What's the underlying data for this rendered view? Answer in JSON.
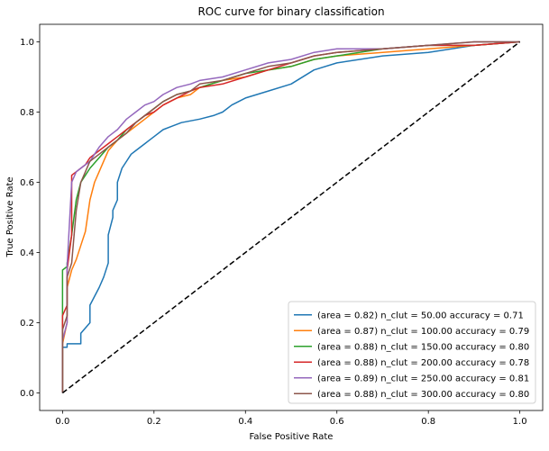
{
  "chart_data": {
    "type": "line",
    "title": "ROC curve for binary classification",
    "xlabel": "False Positive Rate",
    "ylabel": "True Positive Rate",
    "xlim": [
      -0.05,
      1.05
    ],
    "ylim": [
      -0.05,
      1.05
    ],
    "xticks": [
      0.0,
      0.2,
      0.4,
      0.6,
      0.8,
      1.0
    ],
    "xtick_labels": [
      "0.0",
      "0.2",
      "0.4",
      "0.6",
      "0.8",
      "1.0"
    ],
    "yticks": [
      0.0,
      0.2,
      0.4,
      0.6,
      0.8,
      1.0
    ],
    "ytick_labels": [
      "0.0",
      "0.2",
      "0.4",
      "0.6",
      "0.8",
      "1.0"
    ],
    "grid": false,
    "legend_position": "lower right",
    "diagonal": {
      "x": [
        0,
        1
      ],
      "y": [
        0,
        1
      ],
      "color": "#000000",
      "style": "dashed"
    },
    "series": [
      {
        "name": "(area = 0.82) n_clut = 50.00 accuracy = 0.71",
        "color": "#1f77b4",
        "x": [
          0.0,
          0.0,
          0.01,
          0.01,
          0.04,
          0.04,
          0.06,
          0.06,
          0.08,
          0.09,
          0.1,
          0.1,
          0.11,
          0.11,
          0.12,
          0.12,
          0.13,
          0.14,
          0.15,
          0.16,
          0.17,
          0.18,
          0.19,
          0.2,
          0.22,
          0.24,
          0.26,
          0.3,
          0.33,
          0.35,
          0.37,
          0.4,
          0.45,
          0.5,
          0.55,
          0.6,
          0.7,
          0.8,
          0.9,
          1.0
        ],
        "y": [
          0.0,
          0.13,
          0.13,
          0.14,
          0.14,
          0.17,
          0.2,
          0.25,
          0.3,
          0.33,
          0.37,
          0.45,
          0.5,
          0.52,
          0.55,
          0.6,
          0.64,
          0.66,
          0.68,
          0.69,
          0.7,
          0.71,
          0.72,
          0.73,
          0.75,
          0.76,
          0.77,
          0.78,
          0.79,
          0.8,
          0.82,
          0.84,
          0.86,
          0.88,
          0.92,
          0.94,
          0.96,
          0.97,
          0.99,
          1.0
        ]
      },
      {
        "name": "(area = 0.87) n_clut = 100.00 accuracy = 0.79",
        "color": "#ff7f0e",
        "x": [
          0.0,
          0.0,
          0.01,
          0.01,
          0.02,
          0.03,
          0.04,
          0.05,
          0.06,
          0.07,
          0.08,
          0.09,
          0.1,
          0.12,
          0.14,
          0.16,
          0.18,
          0.2,
          0.22,
          0.25,
          0.28,
          0.3,
          0.35,
          0.4,
          0.45,
          0.5,
          0.55,
          0.6,
          0.7,
          0.8,
          0.9,
          1.0
        ],
        "y": [
          0.0,
          0.14,
          0.2,
          0.3,
          0.35,
          0.38,
          0.42,
          0.46,
          0.55,
          0.6,
          0.63,
          0.66,
          0.69,
          0.72,
          0.74,
          0.76,
          0.78,
          0.8,
          0.82,
          0.84,
          0.85,
          0.87,
          0.89,
          0.9,
          0.92,
          0.93,
          0.95,
          0.96,
          0.97,
          0.98,
          0.99,
          1.0
        ]
      },
      {
        "name": "(area = 0.88) n_clut = 150.00 accuracy = 0.80",
        "color": "#2ca02c",
        "x": [
          0.0,
          0.0,
          0.01,
          0.01,
          0.02,
          0.03,
          0.04,
          0.05,
          0.06,
          0.08,
          0.1,
          0.12,
          0.14,
          0.16,
          0.18,
          0.2,
          0.22,
          0.25,
          0.28,
          0.3,
          0.35,
          0.4,
          0.45,
          0.5,
          0.55,
          0.6,
          0.7,
          0.8,
          0.9,
          1.0
        ],
        "y": [
          0.0,
          0.35,
          0.36,
          0.37,
          0.45,
          0.55,
          0.6,
          0.62,
          0.64,
          0.67,
          0.7,
          0.72,
          0.75,
          0.77,
          0.79,
          0.81,
          0.83,
          0.85,
          0.86,
          0.87,
          0.89,
          0.91,
          0.92,
          0.93,
          0.95,
          0.96,
          0.98,
          0.99,
          0.99,
          1.0
        ]
      },
      {
        "name": "(area = 0.88) n_clut = 200.00 accuracy = 0.78",
        "color": "#d62728",
        "x": [
          0.0,
          0.0,
          0.01,
          0.01,
          0.02,
          0.02,
          0.03,
          0.04,
          0.05,
          0.06,
          0.08,
          0.1,
          0.12,
          0.14,
          0.16,
          0.18,
          0.2,
          0.22,
          0.25,
          0.28,
          0.3,
          0.35,
          0.4,
          0.45,
          0.5,
          0.55,
          0.6,
          0.7,
          0.8,
          0.9,
          1.0
        ],
        "y": [
          0.0,
          0.22,
          0.25,
          0.35,
          0.45,
          0.62,
          0.63,
          0.64,
          0.65,
          0.67,
          0.69,
          0.71,
          0.73,
          0.75,
          0.77,
          0.79,
          0.8,
          0.82,
          0.84,
          0.86,
          0.87,
          0.88,
          0.9,
          0.92,
          0.94,
          0.96,
          0.97,
          0.98,
          0.99,
          0.99,
          1.0
        ]
      },
      {
        "name": "(area = 0.89) n_clut = 250.00 accuracy = 0.81",
        "color": "#9467bd",
        "x": [
          0.0,
          0.0,
          0.01,
          0.01,
          0.02,
          0.03,
          0.04,
          0.05,
          0.06,
          0.07,
          0.08,
          0.1,
          0.12,
          0.14,
          0.16,
          0.18,
          0.2,
          0.22,
          0.25,
          0.28,
          0.3,
          0.35,
          0.4,
          0.45,
          0.5,
          0.55,
          0.6,
          0.7,
          0.8,
          0.9,
          1.0
        ],
        "y": [
          0.0,
          0.15,
          0.2,
          0.36,
          0.6,
          0.63,
          0.64,
          0.65,
          0.66,
          0.68,
          0.7,
          0.73,
          0.75,
          0.78,
          0.8,
          0.82,
          0.83,
          0.85,
          0.87,
          0.88,
          0.89,
          0.9,
          0.92,
          0.94,
          0.95,
          0.97,
          0.98,
          0.98,
          0.99,
          1.0,
          1.0
        ]
      },
      {
        "name": "(area = 0.88) n_clut = 300.00 accuracy = 0.80",
        "color": "#8c564b",
        "x": [
          0.0,
          0.0,
          0.01,
          0.01,
          0.02,
          0.03,
          0.04,
          0.05,
          0.06,
          0.08,
          0.1,
          0.12,
          0.14,
          0.16,
          0.18,
          0.2,
          0.22,
          0.25,
          0.28,
          0.3,
          0.35,
          0.4,
          0.45,
          0.5,
          0.55,
          0.6,
          0.7,
          0.8,
          0.9,
          1.0
        ],
        "y": [
          0.0,
          0.18,
          0.22,
          0.33,
          0.37,
          0.52,
          0.6,
          0.63,
          0.66,
          0.68,
          0.7,
          0.72,
          0.74,
          0.77,
          0.79,
          0.81,
          0.83,
          0.85,
          0.86,
          0.88,
          0.89,
          0.91,
          0.93,
          0.94,
          0.96,
          0.97,
          0.98,
          0.99,
          1.0,
          1.0
        ]
      }
    ]
  }
}
